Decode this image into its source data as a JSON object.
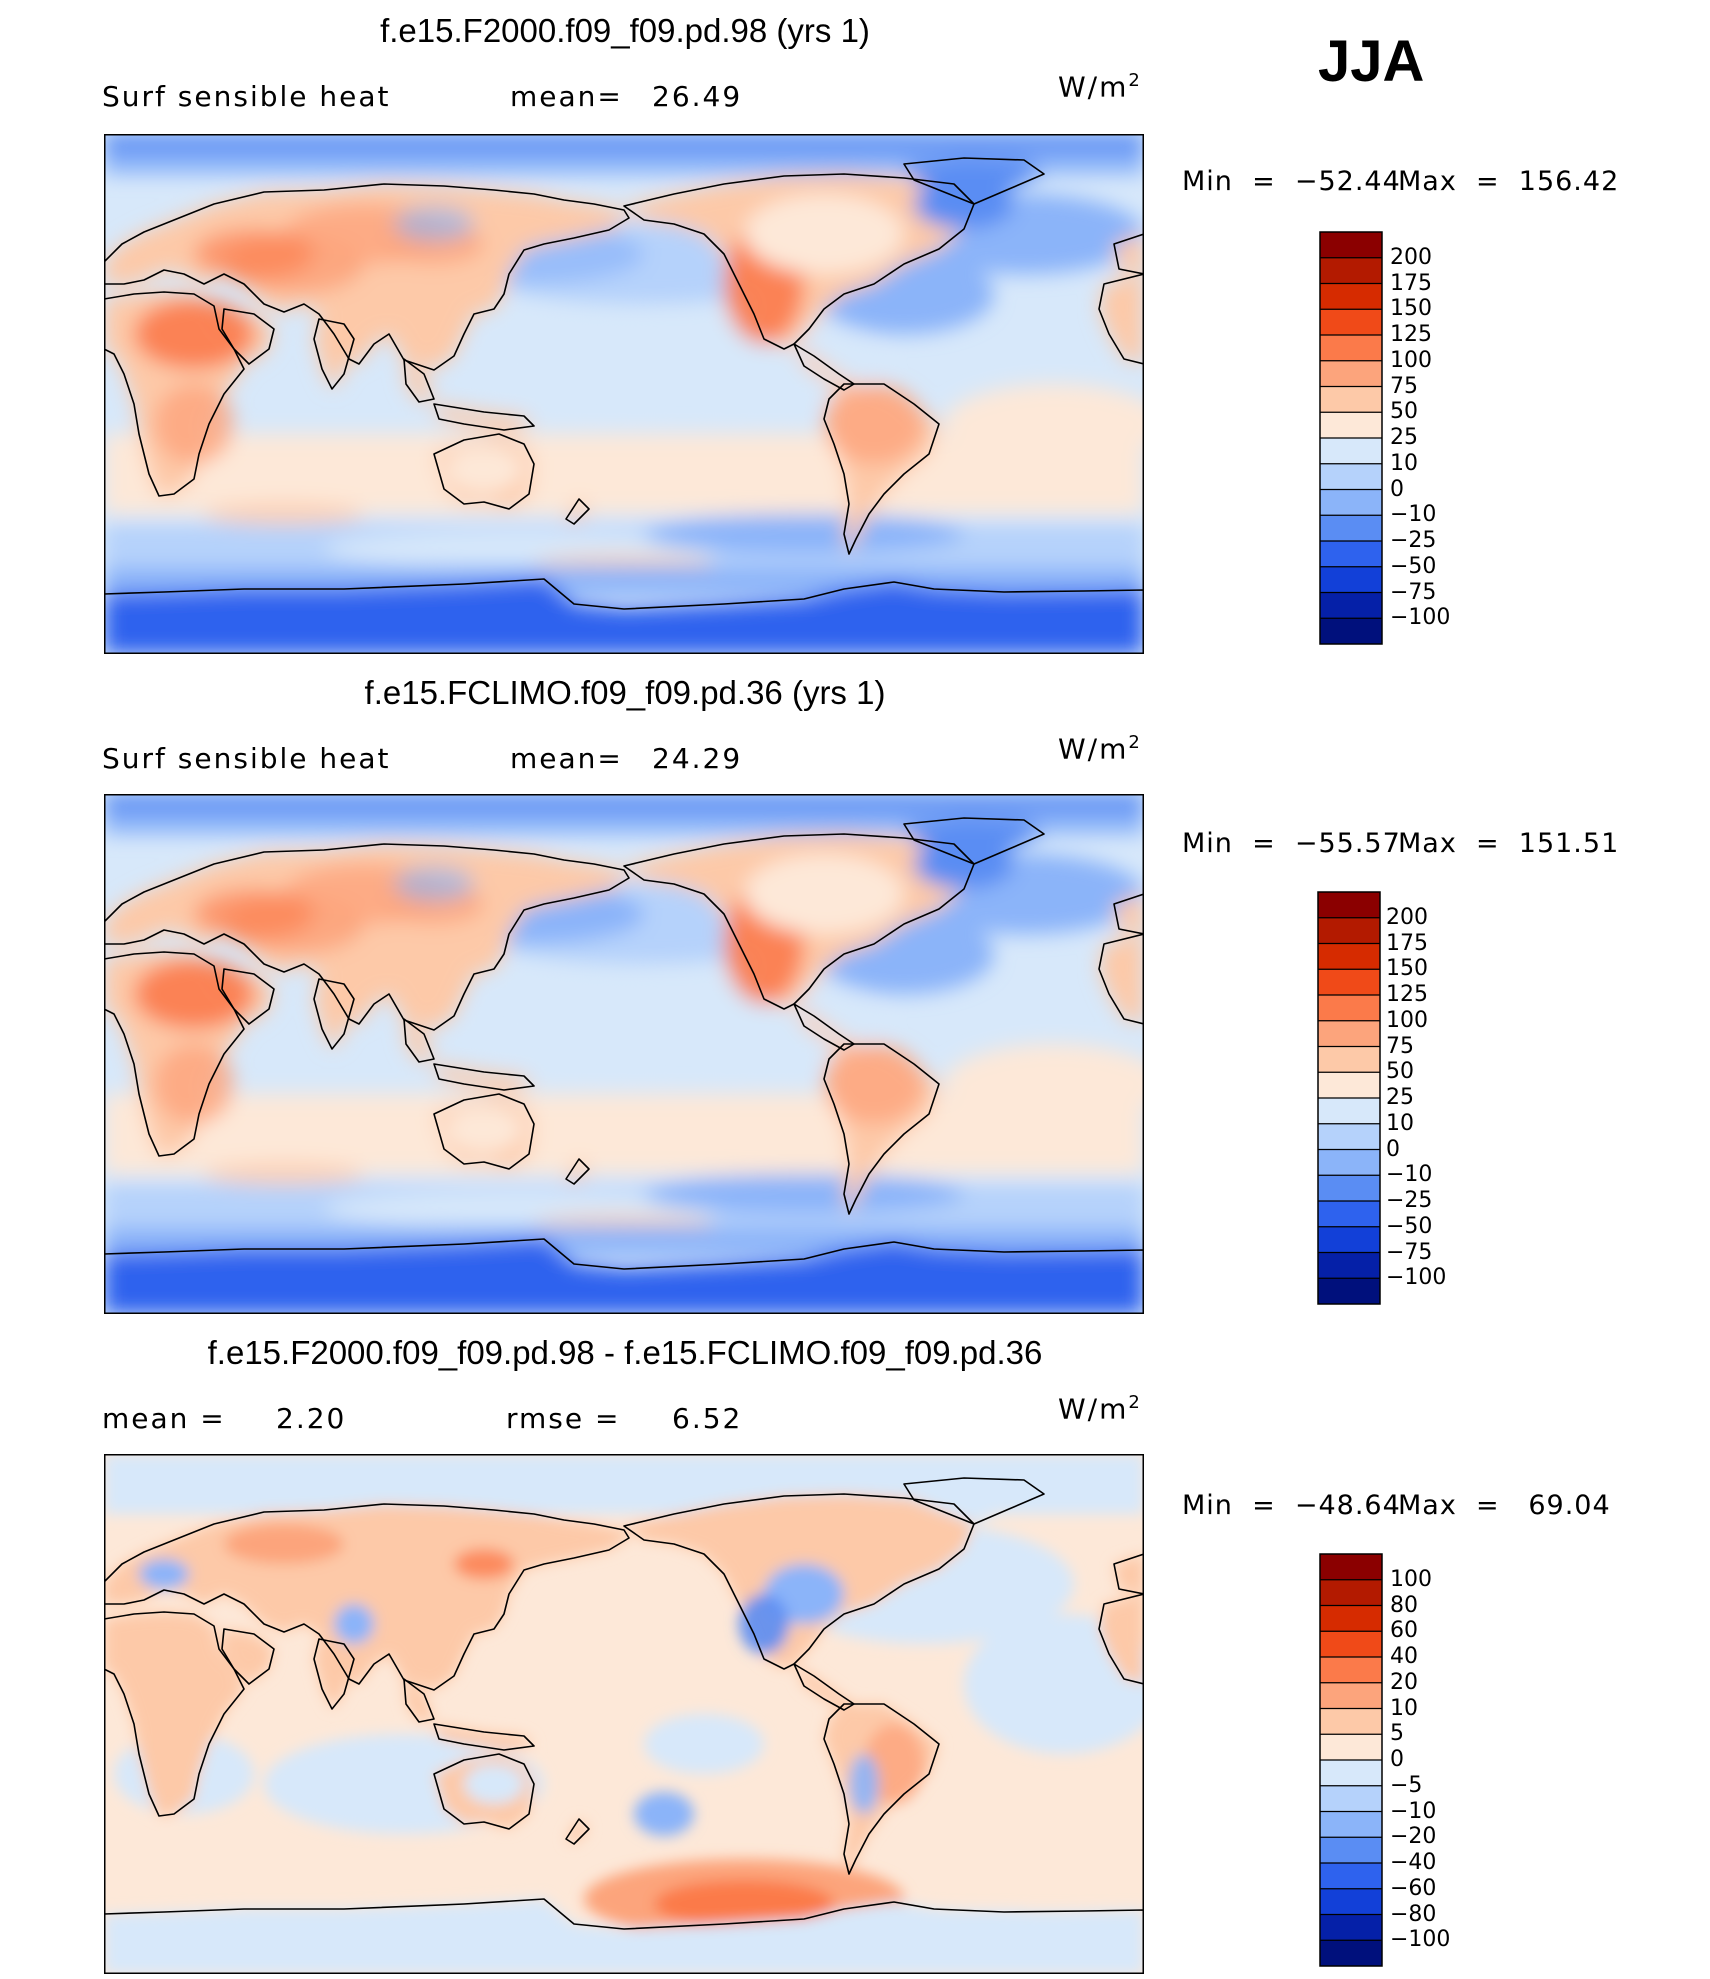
{
  "season": "JJA",
  "panels": [
    {
      "title": "f.e15.F2000.f09_f09.pd.98 (yrs 1)",
      "left_label": "Surf  sensible  heat",
      "stat1_label": "mean=",
      "stat1_value": "26.49",
      "stat2_label": "",
      "stat2_value": "",
      "units": "W/m",
      "units_exp": "2",
      "min_text": "Min  =  −52.44",
      "max_text": "Max  =  156.42",
      "colorbar_labels": [
        "200",
        "175",
        "150",
        "125",
        "100",
        "75",
        "50",
        "25",
        "10",
        "0",
        "−10",
        "−25",
        "−50",
        "−75",
        "−100"
      ],
      "colorbar_colors": [
        "#8b0000",
        "#b31a00",
        "#d62b00",
        "#f04a18",
        "#fb7a4a",
        "#fca47c",
        "#fdc9a8",
        "#fde8d8",
        "#d7e8fa",
        "#b5d2fb",
        "#8bb4f9",
        "#5a8df3",
        "#2e62ee",
        "#1240d8",
        "#0520a8",
        "#00107c"
      ]
    },
    {
      "title": "f.e15.FCLIMO.f09_f09.pd.36 (yrs 1)",
      "left_label": "Surf  sensible  heat",
      "stat1_label": "mean=",
      "stat1_value": "24.29",
      "stat2_label": "",
      "stat2_value": "",
      "units": "W/m",
      "units_exp": "2",
      "min_text": "Min  =  −55.57",
      "max_text": "Max  =  151.51",
      "colorbar_labels": [
        "200",
        "175",
        "150",
        "125",
        "100",
        "75",
        "50",
        "25",
        "10",
        "0",
        "−10",
        "−25",
        "−50",
        "−75",
        "−100"
      ],
      "colorbar_colors": [
        "#8b0000",
        "#b31a00",
        "#d62b00",
        "#f04a18",
        "#fb7a4a",
        "#fca47c",
        "#fdc9a8",
        "#fde8d8",
        "#d7e8fa",
        "#b5d2fb",
        "#8bb4f9",
        "#5a8df3",
        "#2e62ee",
        "#1240d8",
        "#0520a8",
        "#00107c"
      ]
    },
    {
      "title": "f.e15.F2000.f09_f09.pd.98 - f.e15.FCLIMO.f09_f09.pd.36",
      "left_label": "mean  =",
      "stat1_label": "",
      "stat1_value": "2.20",
      "stat2_label": "rmse  =",
      "stat2_value": "6.52",
      "units": "W/m",
      "units_exp": "2",
      "min_text": "Min  =  −48.64",
      "max_text": "Max  =   69.04",
      "colorbar_labels": [
        "100",
        "80",
        "60",
        "40",
        "20",
        "10",
        "5",
        "0",
        "−5",
        "−10",
        "−20",
        "−40",
        "−60",
        "−80",
        "−100"
      ],
      "colorbar_colors": [
        "#8b0000",
        "#b31a00",
        "#d62b00",
        "#f04a18",
        "#fb7a4a",
        "#fca47c",
        "#fdc9a8",
        "#fde8d8",
        "#d7e8fa",
        "#b5d2fb",
        "#8bb4f9",
        "#5a8df3",
        "#2e62ee",
        "#1240d8",
        "#0520a8",
        "#00107c"
      ]
    }
  ]
}
